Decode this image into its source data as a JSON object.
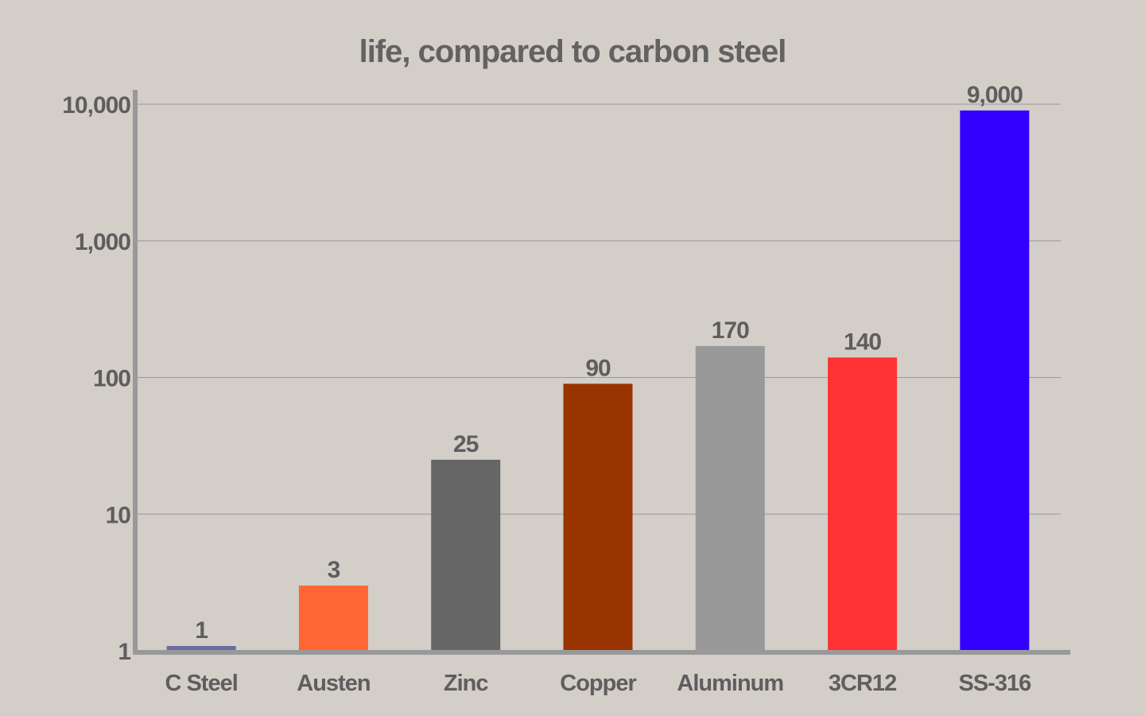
{
  "chart_data": {
    "type": "bar",
    "title": "life, compared to carbon steel",
    "xlabel": "",
    "ylabel": "",
    "y_scale": "log",
    "ylim": [
      1,
      10000
    ],
    "grid": true,
    "y_ticks": [
      {
        "value": 1,
        "label": "1"
      },
      {
        "value": 10,
        "label": "10"
      },
      {
        "value": 100,
        "label": "100"
      },
      {
        "value": 1000,
        "label": "1,000"
      },
      {
        "value": 10000,
        "label": "10,000"
      }
    ],
    "categories": [
      "C Steel",
      "Austen",
      "Zinc",
      "Copper",
      "Aluminum",
      "3CR12",
      "SS-316"
    ],
    "values": [
      1,
      3,
      25,
      90,
      170,
      140,
      9000
    ],
    "data_labels": [
      "1",
      "3",
      "25",
      "90",
      "170",
      "140",
      "9,000"
    ],
    "colors": [
      "#6b6b9e",
      "#ff6633",
      "#666666",
      "#993300",
      "#999999",
      "#ff3333",
      "#3300ff"
    ]
  }
}
